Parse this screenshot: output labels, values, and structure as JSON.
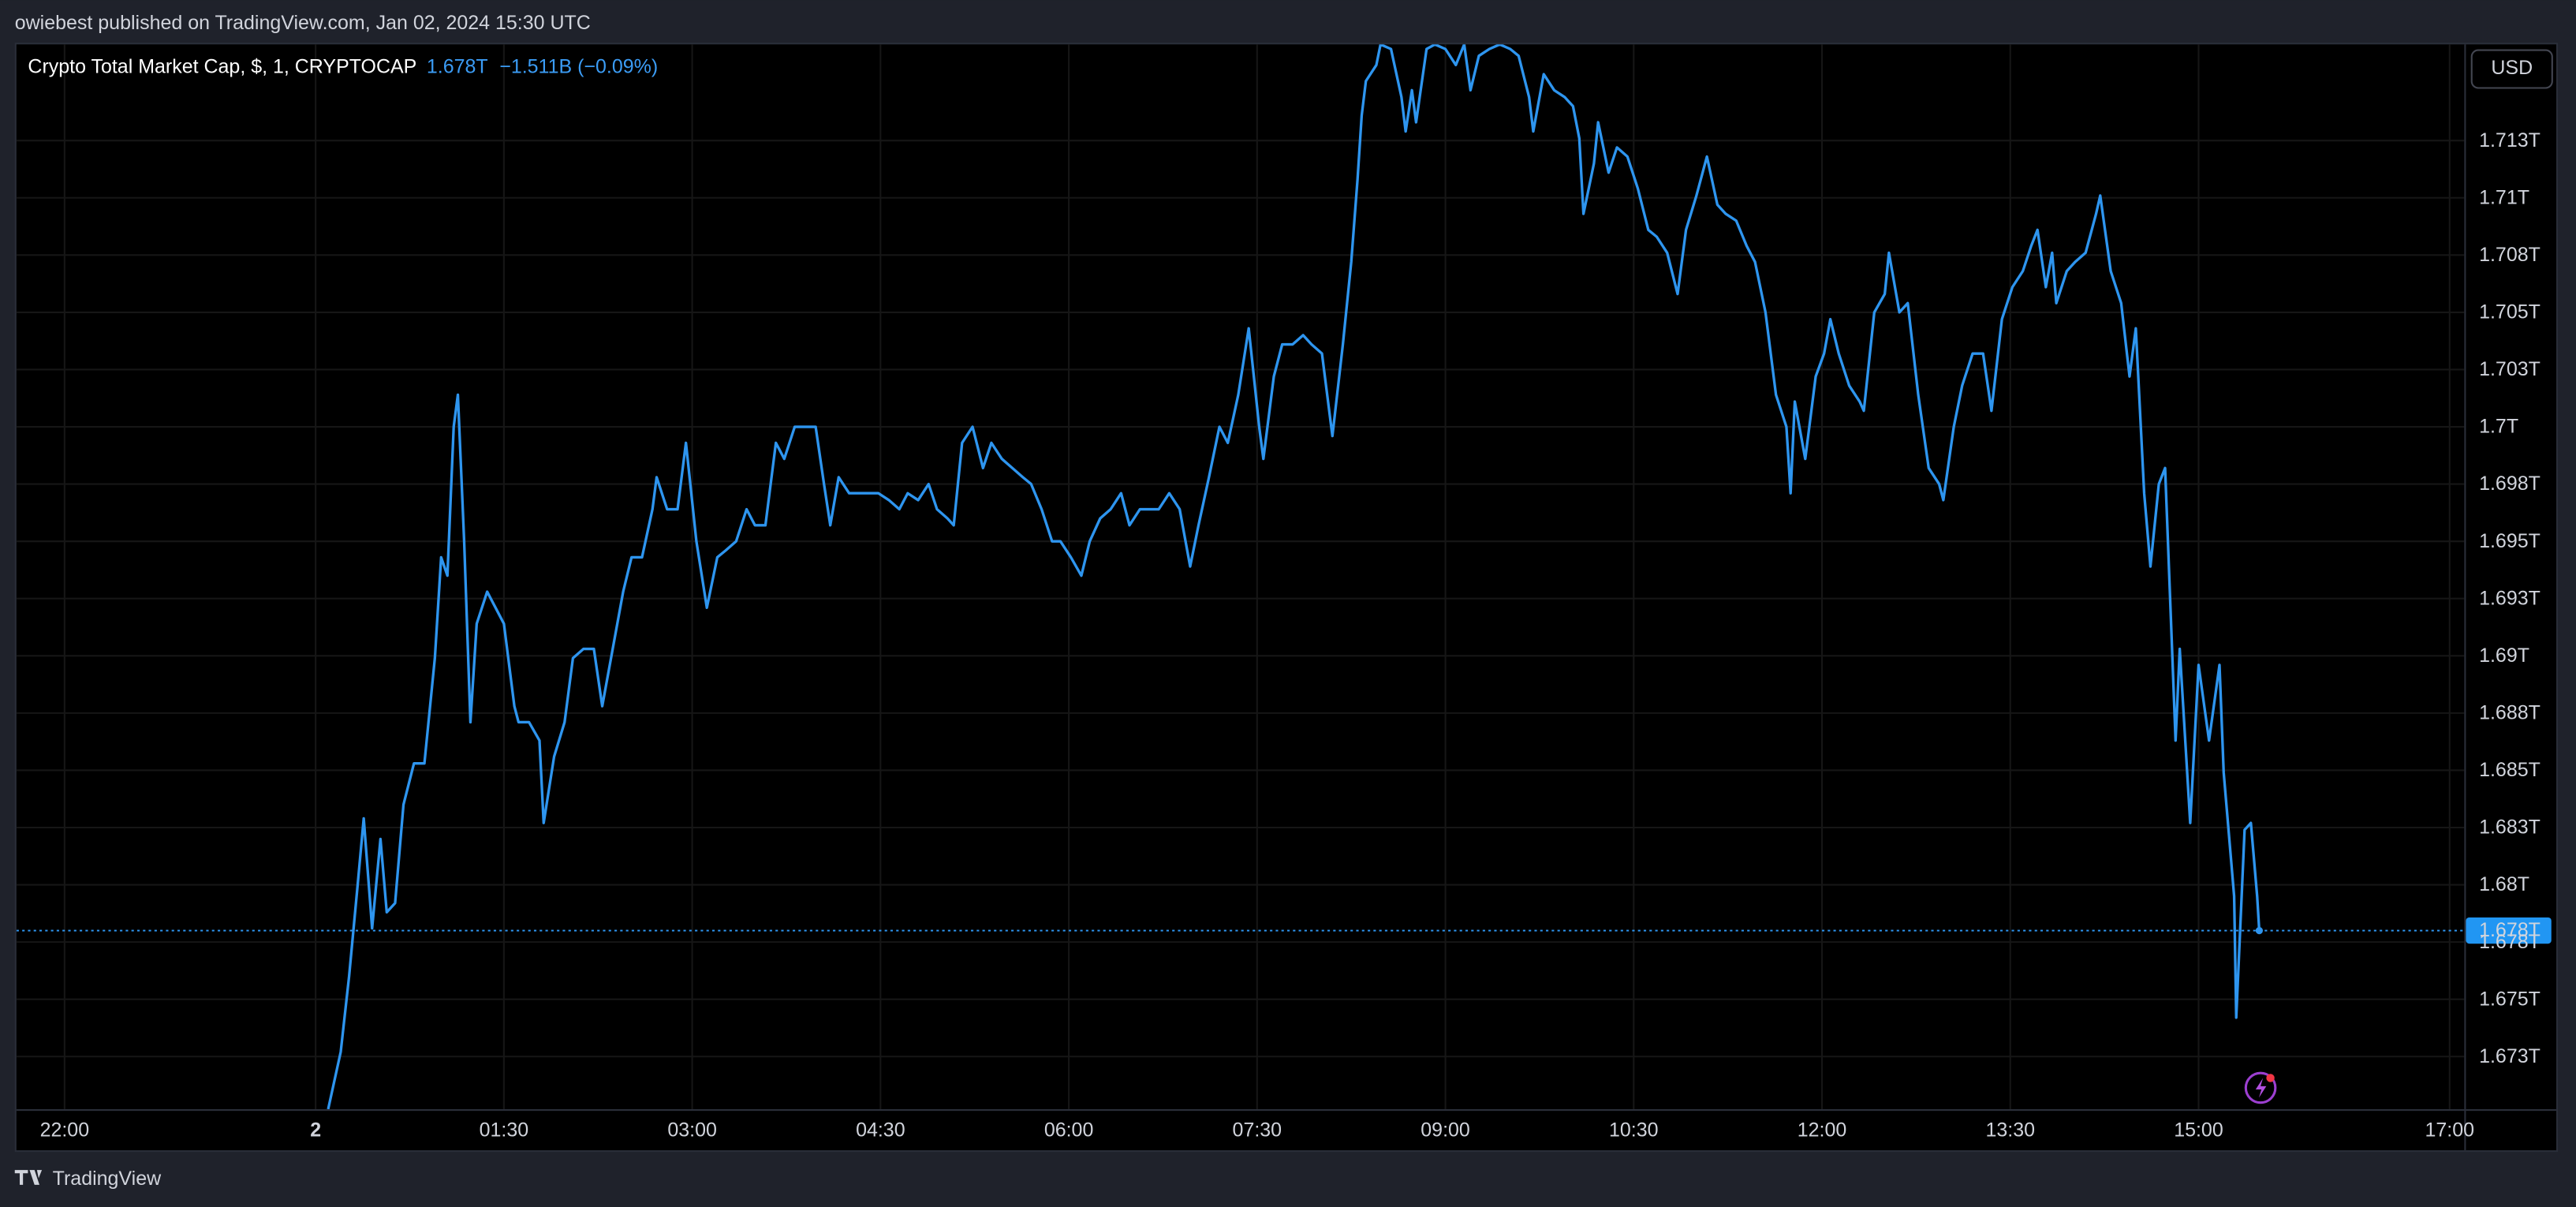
{
  "header": "owiebest published on TradingView.com, Jan 02, 2024 15:30 UTC",
  "footer": "TradingView",
  "currency_button": "USD",
  "chart_data": {
    "type": "line",
    "legend": {
      "price": "1.678T",
      "change": "−1.511B (−0.09%)"
    },
    "price_label": "1.678T",
    "grid": true,
    "xlim": [
      -143,
      1027
    ],
    "xticks": [
      {
        "value": -120,
        "label": "22:00"
      },
      {
        "value": 0,
        "label": "2"
      },
      {
        "value": 90,
        "label": "01:30"
      },
      {
        "value": 180,
        "label": "03:00"
      },
      {
        "value": 270,
        "label": "04:30"
      },
      {
        "value": 360,
        "label": "06:00"
      },
      {
        "value": 450,
        "label": "07:30"
      },
      {
        "value": 540,
        "label": "09:00"
      },
      {
        "value": 630,
        "label": "10:30"
      },
      {
        "value": 720,
        "label": "12:00"
      },
      {
        "value": 810,
        "label": "13:30"
      },
      {
        "value": 900,
        "label": "15:00"
      },
      {
        "value": 1020,
        "label": "17:00"
      }
    ],
    "ylim": [
      1.6702,
      1.7167
    ],
    "yticks": [
      {
        "value": 1.7125,
        "label": "1.713T"
      },
      {
        "value": 1.71,
        "label": "1.71T"
      },
      {
        "value": 1.7075,
        "label": "1.708T"
      },
      {
        "value": 1.705,
        "label": "1.705T"
      },
      {
        "value": 1.7025,
        "label": "1.703T"
      },
      {
        "value": 1.7,
        "label": "1.7T"
      },
      {
        "value": 1.6975,
        "label": "1.698T"
      },
      {
        "value": 1.695,
        "label": "1.695T"
      },
      {
        "value": 1.6925,
        "label": "1.693T"
      },
      {
        "value": 1.69,
        "label": "1.69T"
      },
      {
        "value": 1.6875,
        "label": "1.688T"
      },
      {
        "value": 1.685,
        "label": "1.685T"
      },
      {
        "value": 1.6825,
        "label": "1.683T"
      },
      {
        "value": 1.68,
        "label": "1.68T"
      },
      {
        "value": 1.6775,
        "label": "1.678T"
      },
      {
        "value": 1.675,
        "label": "1.675T"
      },
      {
        "value": 1.6725,
        "label": "1.673T"
      }
    ],
    "x": [
      6,
      12,
      16,
      20,
      23,
      27,
      31,
      34,
      38,
      42,
      47,
      52,
      57,
      60,
      63,
      66,
      68,
      71,
      74,
      77,
      82,
      86,
      90,
      95,
      97,
      102,
      107,
      109,
      114,
      119,
      123,
      128,
      133,
      137,
      142,
      147,
      151,
      156,
      161,
      163,
      168,
      173,
      177,
      182,
      187,
      192,
      196,
      201,
      206,
      210,
      215,
      220,
      224,
      229,
      234,
      239,
      243,
      246,
      250,
      255,
      260,
      265,
      269,
      274,
      279,
      283,
      288,
      293,
      297,
      302,
      305,
      309,
      314,
      319,
      323,
      328,
      333,
      338,
      342,
      347,
      352,
      356,
      361,
      366,
      370,
      375,
      380,
      385,
      389,
      394,
      399,
      403,
      408,
      413,
      418,
      422,
      427,
      432,
      436,
      441,
      446,
      451,
      453,
      458,
      462,
      467,
      472,
      476,
      481,
      486,
      491,
      495,
      498,
      500,
      502,
      507,
      509,
      514,
      519,
      521,
      524,
      526,
      531,
      535,
      540,
      545,
      549,
      552,
      556,
      561,
      566,
      571,
      575,
      580,
      582,
      587,
      592,
      597,
      601,
      604,
      606,
      611,
      613,
      618,
      622,
      627,
      632,
      637,
      641,
      646,
      651,
      655,
      660,
      665,
      670,
      674,
      679,
      684,
      688,
      693,
      698,
      703,
      705,
      707,
      712,
      717,
      721,
      724,
      728,
      733,
      738,
      740,
      745,
      750,
      752,
      757,
      761,
      766,
      771,
      776,
      778,
      783,
      787,
      792,
      797,
      801,
      806,
      811,
      816,
      820,
      823,
      827,
      830,
      832,
      837,
      841,
      846,
      851,
      853,
      858,
      863,
      867,
      870,
      874,
      877,
      881,
      884,
      889,
      891,
      896,
      900,
      905,
      910,
      912,
      917,
      918,
      922,
      925,
      928,
      929
    ],
    "series": [
      {
        "name": "Crypto Total Market Cap, $, 1, CRYPTOCAP",
        "color": "#2e95ef",
        "values": [
          1.6702,
          1.6727,
          1.676,
          1.6799,
          1.6829,
          1.6781,
          1.682,
          1.6788,
          1.6792,
          1.6835,
          1.6853,
          1.6853,
          1.6899,
          1.6943,
          1.6935,
          1.7,
          1.7014,
          1.695,
          1.6871,
          1.6914,
          1.6928,
          1.6921,
          1.6914,
          1.6878,
          1.6871,
          1.6871,
          1.6863,
          1.6827,
          1.6856,
          1.6871,
          1.6899,
          1.6903,
          1.6903,
          1.6878,
          1.6903,
          1.6928,
          1.6943,
          1.6943,
          1.6964,
          1.6978,
          1.6964,
          1.6964,
          1.6993,
          1.695,
          1.6921,
          1.6943,
          1.6946,
          1.695,
          1.6964,
          1.6957,
          1.6957,
          1.6993,
          1.6986,
          1.7,
          1.7,
          1.7,
          1.6975,
          1.6957,
          1.6978,
          1.6971,
          1.6971,
          1.6971,
          1.6971,
          1.6968,
          1.6964,
          1.6971,
          1.6968,
          1.6975,
          1.6964,
          1.696,
          1.6957,
          1.6993,
          1.7,
          1.6982,
          1.6993,
          1.6986,
          1.6982,
          1.6978,
          1.6975,
          1.6964,
          1.695,
          1.695,
          1.6943,
          1.6935,
          1.695,
          1.696,
          1.6964,
          1.6971,
          1.6957,
          1.6964,
          1.6964,
          1.6964,
          1.6971,
          1.6964,
          1.6939,
          1.6957,
          1.6978,
          1.7,
          1.6993,
          1.7014,
          1.7043,
          1.7,
          1.6986,
          1.7022,
          1.7036,
          1.7036,
          1.704,
          1.7036,
          1.7032,
          1.6996,
          1.7036,
          1.7072,
          1.7108,
          1.7136,
          1.7151,
          1.7158,
          1.7167,
          1.7165,
          1.7144,
          1.7129,
          1.7147,
          1.7133,
          1.7165,
          1.7167,
          1.7165,
          1.7158,
          1.7167,
          1.7147,
          1.7162,
          1.7165,
          1.7167,
          1.7165,
          1.7162,
          1.7144,
          1.7129,
          1.7154,
          1.7147,
          1.7144,
          1.714,
          1.7126,
          1.7093,
          1.7115,
          1.7133,
          1.7111,
          1.7122,
          1.7118,
          1.7104,
          1.7086,
          1.7083,
          1.7076,
          1.7058,
          1.7086,
          1.7101,
          1.7118,
          1.7097,
          1.7093,
          1.709,
          1.7079,
          1.7072,
          1.705,
          1.7014,
          1.7,
          1.6971,
          1.7011,
          1.6986,
          1.7022,
          1.7032,
          1.7047,
          1.7032,
          1.7018,
          1.7011,
          1.7007,
          1.705,
          1.7058,
          1.7076,
          1.705,
          1.7054,
          1.7014,
          1.6982,
          1.6975,
          1.6968,
          1.7,
          1.7018,
          1.7032,
          1.7032,
          1.7007,
          1.7047,
          1.7061,
          1.7068,
          1.7079,
          1.7086,
          1.7061,
          1.7076,
          1.7054,
          1.7068,
          1.7072,
          1.7076,
          1.7093,
          1.7101,
          1.7068,
          1.7054,
          1.7022,
          1.7043,
          1.6971,
          1.6939,
          1.6975,
          1.6982,
          1.6863,
          1.6903,
          1.6827,
          1.6896,
          1.6863,
          1.6896,
          1.6849,
          1.6795,
          1.6742,
          1.6824,
          1.6827,
          1.6795,
          1.678
        ]
      }
    ]
  }
}
